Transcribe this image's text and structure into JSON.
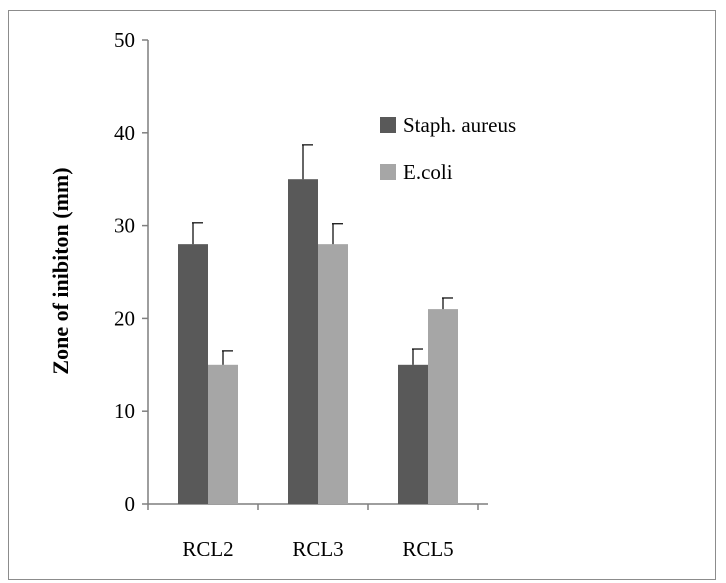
{
  "chart_data": {
    "type": "bar",
    "title": "",
    "xlabel": "",
    "ylabel": "Zone of inibiton (mm)",
    "ylim": [
      0,
      50
    ],
    "yticks": [
      0,
      10,
      20,
      30,
      40,
      50
    ],
    "categories": [
      "RCL2",
      "RCL3",
      "RCL5"
    ],
    "series": [
      {
        "name": "Staph. aureus",
        "color": "#595959",
        "values": [
          28,
          35,
          15
        ],
        "errors": [
          2.3,
          3.7,
          1.7
        ]
      },
      {
        "name": "E.coli",
        "color": "#a6a6a6",
        "values": [
          15,
          28,
          21
        ],
        "errors": [
          1.5,
          2.2,
          1.2
        ]
      }
    ],
    "grid": false,
    "legend": "top-right",
    "error_bars": true
  }
}
